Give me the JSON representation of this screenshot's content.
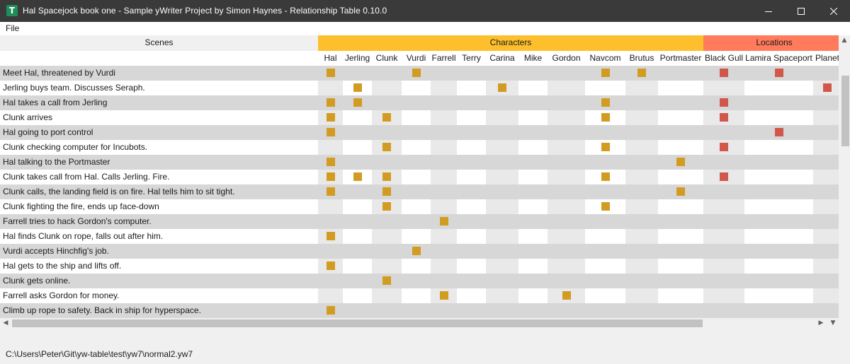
{
  "window": {
    "title": "Hal Spacejock book one - Sample yWriter Project by Simon Haynes - Relationship Table  0.10.0"
  },
  "menu": {
    "file_label": "File"
  },
  "table": {
    "scenes_header": "Scenes",
    "groups": {
      "characters": "Characters",
      "locations": "Locations"
    },
    "characters": [
      "Hal",
      "Jerling",
      "Clunk",
      "Vurdi",
      "Farrell",
      "Terry",
      "Carina",
      "Mike",
      "Gordon",
      "Navcom",
      "Brutus",
      "Portmaster"
    ],
    "locations": [
      "Black Gull",
      "Lamira Spaceport",
      "Planet"
    ],
    "colors": {
      "character_group": "#fdc02c",
      "location_group": "#ff7b5c",
      "character_mark": "#d29c22",
      "location_mark": "#d0574a",
      "row_dark": "#d7d7d7",
      "row_light": "#ffffff",
      "col_shade": "#e9e9e9"
    },
    "rows": [
      {
        "scene": "Meet Hal, threatened by Vurdi",
        "characters": [
          1,
          0,
          0,
          1,
          0,
          0,
          0,
          0,
          0,
          1,
          1,
          0
        ],
        "locations": [
          1,
          1,
          0
        ]
      },
      {
        "scene": "Jerling buys team. Discusses Seraph.",
        "characters": [
          0,
          1,
          0,
          0,
          0,
          0,
          1,
          0,
          0,
          0,
          0,
          0
        ],
        "locations": [
          0,
          0,
          1
        ]
      },
      {
        "scene": "Hal takes a call from Jerling",
        "characters": [
          1,
          1,
          0,
          0,
          0,
          0,
          0,
          0,
          0,
          1,
          0,
          0
        ],
        "locations": [
          1,
          0,
          0
        ]
      },
      {
        "scene": "Clunk arrives",
        "characters": [
          1,
          0,
          1,
          0,
          0,
          0,
          0,
          0,
          0,
          1,
          0,
          0
        ],
        "locations": [
          1,
          0,
          0
        ]
      },
      {
        "scene": "Hal going to port control",
        "characters": [
          1,
          0,
          0,
          0,
          0,
          0,
          0,
          0,
          0,
          0,
          0,
          0
        ],
        "locations": [
          0,
          1,
          0
        ]
      },
      {
        "scene": "Clunk checking computer for Incubots.",
        "characters": [
          0,
          0,
          1,
          0,
          0,
          0,
          0,
          0,
          0,
          1,
          0,
          0
        ],
        "locations": [
          1,
          0,
          0
        ]
      },
      {
        "scene": "Hal talking to the Portmaster",
        "characters": [
          1,
          0,
          0,
          0,
          0,
          0,
          0,
          0,
          0,
          0,
          0,
          1
        ],
        "locations": [
          0,
          0,
          0
        ]
      },
      {
        "scene": "Clunk takes call from Hal. Calls Jerling. Fire.",
        "characters": [
          1,
          1,
          1,
          0,
          0,
          0,
          0,
          0,
          0,
          1,
          0,
          0
        ],
        "locations": [
          1,
          0,
          0
        ]
      },
      {
        "scene": "Clunk calls, the landing field is on fire. Hal tells him to sit tight.",
        "characters": [
          1,
          0,
          1,
          0,
          0,
          0,
          0,
          0,
          0,
          0,
          0,
          1
        ],
        "locations": [
          0,
          0,
          0
        ]
      },
      {
        "scene": "Clunk fighting the fire, ends up face-down",
        "characters": [
          0,
          0,
          1,
          0,
          0,
          0,
          0,
          0,
          0,
          1,
          0,
          0
        ],
        "locations": [
          0,
          0,
          0
        ]
      },
      {
        "scene": "Farrell tries to hack Gordon's computer.",
        "characters": [
          0,
          0,
          0,
          0,
          1,
          0,
          0,
          0,
          0,
          0,
          0,
          0
        ],
        "locations": [
          0,
          0,
          0
        ]
      },
      {
        "scene": "Hal finds Clunk on rope, falls out after him.",
        "characters": [
          1,
          0,
          0,
          0,
          0,
          0,
          0,
          0,
          0,
          0,
          0,
          0
        ],
        "locations": [
          0,
          0,
          0
        ]
      },
      {
        "scene": "Vurdi accepts Hinchfig's job.",
        "characters": [
          0,
          0,
          0,
          1,
          0,
          0,
          0,
          0,
          0,
          0,
          0,
          0
        ],
        "locations": [
          0,
          0,
          0
        ]
      },
      {
        "scene": "Hal gets to the ship and lifts off.",
        "characters": [
          1,
          0,
          0,
          0,
          0,
          0,
          0,
          0,
          0,
          0,
          0,
          0
        ],
        "locations": [
          0,
          0,
          0
        ]
      },
      {
        "scene": "Clunk gets online.",
        "characters": [
          0,
          0,
          1,
          0,
          0,
          0,
          0,
          0,
          0,
          0,
          0,
          0
        ],
        "locations": [
          0,
          0,
          0
        ]
      },
      {
        "scene": "Farrell asks Gordon for money.",
        "characters": [
          0,
          0,
          0,
          0,
          1,
          0,
          0,
          0,
          1,
          0,
          0,
          0
        ],
        "locations": [
          0,
          0,
          0
        ]
      },
      {
        "scene": "Climb up rope to safety. Back in ship for hyperspace.",
        "characters": [
          1,
          0,
          0,
          0,
          0,
          0,
          0,
          0,
          0,
          0,
          0,
          0
        ],
        "locations": [
          0,
          0,
          0
        ]
      }
    ]
  },
  "statusbar": {
    "path": "C:\\Users\\Peter\\Git\\yw-table\\test\\yw7\\normal2.yw7"
  }
}
